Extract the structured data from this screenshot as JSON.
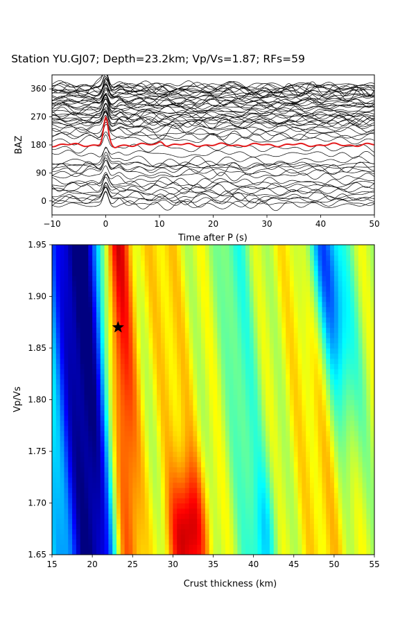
{
  "figure_title": "Station YU.GJ07; Depth=23.2km; Vp/Vs=1.87; RFs=59",
  "chart_data": [
    {
      "type": "line",
      "name": "receiver-function-traces",
      "xlabel": "Time after P (s)",
      "ylabel": "BAZ",
      "xlim": [
        -10,
        50
      ],
      "ylim": [
        -45,
        405
      ],
      "xticks": [
        -10,
        0,
        10,
        20,
        30,
        40,
        50
      ],
      "yticks": [
        0,
        90,
        180,
        270,
        360
      ],
      "trace_count": 59,
      "trace_color": "#000000",
      "stack_color": "#e41a1c",
      "stack_baseline_baz": 180,
      "stack_peak": {
        "time": 0,
        "baz": 265
      },
      "trace_baz_values": [
        -14,
        -6,
        2,
        8,
        14,
        22,
        30,
        40,
        48,
        55,
        62,
        80,
        92,
        100,
        108,
        112,
        118,
        128,
        150,
        170,
        196,
        208,
        214,
        224,
        232,
        240,
        246,
        250,
        254,
        258,
        262,
        268,
        272,
        276,
        280,
        286,
        290,
        296,
        300,
        304,
        308,
        312,
        316,
        320,
        324,
        328,
        332,
        336,
        340,
        344,
        348,
        352,
        354,
        356,
        358,
        362,
        366,
        370,
        374
      ],
      "grid": false
    },
    {
      "type": "heatmap",
      "name": "h-k-stacking",
      "xlabel": "Crust thickness (km)",
      "ylabel": "Vp/Vs",
      "xlim": [
        15,
        55
      ],
      "ylim": [
        1.65,
        1.95
      ],
      "xticks": [
        15,
        20,
        25,
        30,
        35,
        40,
        45,
        50,
        55
      ],
      "yticks": [
        "1.65",
        "1.70",
        "1.75",
        "1.80",
        "1.85",
        "1.90",
        "1.95"
      ],
      "colormap": "jet",
      "best_estimate": {
        "thickness": 23.2,
        "vpvs": 1.87,
        "marker": "star"
      },
      "grid": false
    }
  ]
}
